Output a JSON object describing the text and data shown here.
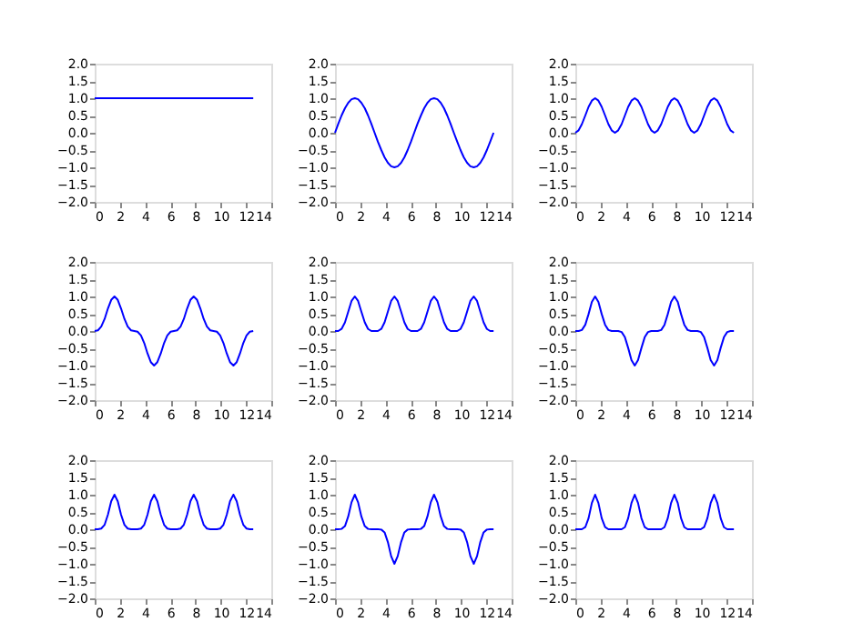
{
  "chart_data": [
    {
      "type": "line",
      "x": [
        0,
        0.26,
        0.52,
        0.79,
        1.05,
        1.31,
        1.57,
        1.83,
        2.09,
        2.36,
        2.62,
        2.88,
        3.14,
        3.4,
        3.67,
        3.93,
        4.19,
        4.45,
        4.71,
        4.97,
        5.24,
        5.5,
        5.76,
        6.02,
        6.28,
        6.54,
        6.81,
        7.07,
        7.33,
        7.59,
        7.85,
        8.12,
        8.38,
        8.64,
        8.9,
        9.16,
        9.42,
        9.69,
        9.95,
        10.21,
        10.47,
        10.73,
        11.0,
        11.26,
        11.52,
        11.78,
        12.04,
        12.3,
        12.57
      ],
      "series": [
        {
          "color": "#0000ff",
          "values": [
            1,
            1,
            1,
            1,
            1,
            1,
            1,
            1,
            1,
            1,
            1,
            1,
            1,
            1,
            1,
            1,
            1,
            1,
            1,
            1,
            1,
            1,
            1,
            1,
            1,
            1,
            1,
            1,
            1,
            1,
            1,
            1,
            1,
            1,
            1,
            1,
            1,
            1,
            1,
            1,
            1,
            1,
            1,
            1,
            1,
            1,
            1,
            1,
            1
          ]
        }
      ],
      "xlim": [
        0,
        14
      ],
      "xticks": [
        0,
        2,
        4,
        6,
        8,
        10,
        12,
        14
      ],
      "ylim": [
        -2,
        2
      ],
      "yticks": [
        {
          "value": -2,
          "label": "−2.0"
        },
        {
          "value": -1.5,
          "label": "−1.5"
        },
        {
          "value": -1,
          "label": "−1.0"
        },
        {
          "value": -0.5,
          "label": "−0.5"
        },
        {
          "value": 0,
          "label": "0.0"
        },
        {
          "value": 0.5,
          "label": "0.5"
        },
        {
          "value": 1,
          "label": "1.0"
        },
        {
          "value": 1.5,
          "label": "1.5"
        },
        {
          "value": 2,
          "label": "2.0"
        }
      ]
    },
    {
      "type": "line",
      "x": [
        0,
        0.26,
        0.52,
        0.79,
        1.05,
        1.31,
        1.57,
        1.83,
        2.09,
        2.36,
        2.62,
        2.88,
        3.14,
        3.4,
        3.67,
        3.93,
        4.19,
        4.45,
        4.71,
        4.97,
        5.24,
        5.5,
        5.76,
        6.02,
        6.28,
        6.54,
        6.81,
        7.07,
        7.33,
        7.59,
        7.85,
        8.12,
        8.38,
        8.64,
        8.9,
        9.16,
        9.42,
        9.69,
        9.95,
        10.21,
        10.47,
        10.73,
        11.0,
        11.26,
        11.52,
        11.78,
        12.04,
        12.3,
        12.57
      ],
      "series": [
        {
          "color": "#0000ff",
          "values": [
            0,
            0.26,
            0.5,
            0.71,
            0.87,
            0.97,
            1,
            0.97,
            0.87,
            0.71,
            0.5,
            0.26,
            0,
            -0.26,
            -0.5,
            -0.71,
            -0.87,
            -0.97,
            -1,
            -0.97,
            -0.87,
            -0.71,
            -0.5,
            -0.26,
            0,
            0.26,
            0.5,
            0.71,
            0.87,
            0.97,
            1,
            0.97,
            0.87,
            0.71,
            0.5,
            0.26,
            0,
            -0.26,
            -0.5,
            -0.71,
            -0.87,
            -0.97,
            -1,
            -0.97,
            -0.87,
            -0.71,
            -0.5,
            -0.26,
            0
          ]
        }
      ],
      "xlim": [
        0,
        14
      ],
      "xticks": [
        0,
        2,
        4,
        6,
        8,
        10,
        12,
        14
      ],
      "ylim": [
        -2,
        2
      ],
      "yticks": [
        {
          "value": -2,
          "label": "−2.0"
        },
        {
          "value": -1.5,
          "label": "−1.5"
        },
        {
          "value": -1,
          "label": "−1.0"
        },
        {
          "value": -0.5,
          "label": "−0.5"
        },
        {
          "value": 0,
          "label": "0.0"
        },
        {
          "value": 0.5,
          "label": "0.5"
        },
        {
          "value": 1,
          "label": "1.0"
        },
        {
          "value": 1.5,
          "label": "1.5"
        },
        {
          "value": 2,
          "label": "2.0"
        }
      ]
    },
    {
      "type": "line",
      "x": [
        0,
        0.26,
        0.52,
        0.79,
        1.05,
        1.31,
        1.57,
        1.83,
        2.09,
        2.36,
        2.62,
        2.88,
        3.14,
        3.4,
        3.67,
        3.93,
        4.19,
        4.45,
        4.71,
        4.97,
        5.24,
        5.5,
        5.76,
        6.02,
        6.28,
        6.54,
        6.81,
        7.07,
        7.33,
        7.59,
        7.85,
        8.12,
        8.38,
        8.64,
        8.9,
        9.16,
        9.42,
        9.69,
        9.95,
        10.21,
        10.47,
        10.73,
        11.0,
        11.26,
        11.52,
        11.78,
        12.04,
        12.3,
        12.57
      ],
      "series": [
        {
          "color": "#0000ff",
          "values": [
            0,
            0.07,
            0.25,
            0.5,
            0.75,
            0.93,
            1,
            0.93,
            0.75,
            0.5,
            0.25,
            0.07,
            0,
            0.07,
            0.25,
            0.5,
            0.75,
            0.93,
            1,
            0.93,
            0.75,
            0.5,
            0.25,
            0.07,
            0,
            0.07,
            0.25,
            0.5,
            0.75,
            0.93,
            1,
            0.93,
            0.75,
            0.5,
            0.25,
            0.07,
            0,
            0.07,
            0.25,
            0.5,
            0.75,
            0.93,
            1,
            0.93,
            0.75,
            0.5,
            0.25,
            0.07,
            0
          ]
        }
      ],
      "xlim": [
        0,
        14
      ],
      "xticks": [
        0,
        2,
        4,
        6,
        8,
        10,
        12,
        14
      ],
      "ylim": [
        -2,
        2
      ],
      "yticks": [
        {
          "value": -2,
          "label": "−2.0"
        },
        {
          "value": -1.5,
          "label": "−1.5"
        },
        {
          "value": -1,
          "label": "−1.0"
        },
        {
          "value": -0.5,
          "label": "−0.5"
        },
        {
          "value": 0,
          "label": "0.0"
        },
        {
          "value": 0.5,
          "label": "0.5"
        },
        {
          "value": 1,
          "label": "1.0"
        },
        {
          "value": 1.5,
          "label": "1.5"
        },
        {
          "value": 2,
          "label": "2.0"
        }
      ]
    },
    {
      "type": "line",
      "x": [
        0,
        0.26,
        0.52,
        0.79,
        1.05,
        1.31,
        1.57,
        1.83,
        2.09,
        2.36,
        2.62,
        2.88,
        3.14,
        3.4,
        3.67,
        3.93,
        4.19,
        4.45,
        4.71,
        4.97,
        5.24,
        5.5,
        5.76,
        6.02,
        6.28,
        6.54,
        6.81,
        7.07,
        7.33,
        7.59,
        7.85,
        8.12,
        8.38,
        8.64,
        8.9,
        9.16,
        9.42,
        9.69,
        9.95,
        10.21,
        10.47,
        10.73,
        11.0,
        11.26,
        11.52,
        11.78,
        12.04,
        12.3,
        12.57
      ],
      "series": [
        {
          "color": "#0000ff",
          "values": [
            0,
            0.02,
            0.13,
            0.35,
            0.65,
            0.9,
            1,
            0.9,
            0.65,
            0.35,
            0.13,
            0.02,
            0,
            -0.02,
            -0.13,
            -0.35,
            -0.65,
            -0.9,
            -1,
            -0.9,
            -0.65,
            -0.35,
            -0.13,
            -0.02,
            0,
            0.02,
            0.13,
            0.35,
            0.65,
            0.9,
            1,
            0.9,
            0.65,
            0.35,
            0.13,
            0.02,
            0,
            -0.02,
            -0.13,
            -0.35,
            -0.65,
            -0.9,
            -1,
            -0.9,
            -0.65,
            -0.35,
            -0.13,
            -0.02,
            0
          ]
        }
      ],
      "xlim": [
        0,
        14
      ],
      "xticks": [
        0,
        2,
        4,
        6,
        8,
        10,
        12,
        14
      ],
      "ylim": [
        -2,
        2
      ],
      "yticks": [
        {
          "value": -2,
          "label": "−2.0"
        },
        {
          "value": -1.5,
          "label": "−1.5"
        },
        {
          "value": -1,
          "label": "−1.0"
        },
        {
          "value": -0.5,
          "label": "−0.5"
        },
        {
          "value": 0,
          "label": "0.0"
        },
        {
          "value": 0.5,
          "label": "0.5"
        },
        {
          "value": 1,
          "label": "1.0"
        },
        {
          "value": 1.5,
          "label": "1.5"
        },
        {
          "value": 2,
          "label": "2.0"
        }
      ]
    },
    {
      "type": "line",
      "x": [
        0,
        0.26,
        0.52,
        0.79,
        1.05,
        1.31,
        1.57,
        1.83,
        2.09,
        2.36,
        2.62,
        2.88,
        3.14,
        3.4,
        3.67,
        3.93,
        4.19,
        4.45,
        4.71,
        4.97,
        5.24,
        5.5,
        5.76,
        6.02,
        6.28,
        6.54,
        6.81,
        7.07,
        7.33,
        7.59,
        7.85,
        8.12,
        8.38,
        8.64,
        8.9,
        9.16,
        9.42,
        9.69,
        9.95,
        10.21,
        10.47,
        10.73,
        11.0,
        11.26,
        11.52,
        11.78,
        12.04,
        12.3,
        12.57
      ],
      "series": [
        {
          "color": "#0000ff",
          "values": [
            0,
            0,
            0.06,
            0.25,
            0.56,
            0.87,
            1,
            0.87,
            0.56,
            0.25,
            0.06,
            0,
            0,
            0,
            0.06,
            0.25,
            0.56,
            0.87,
            1,
            0.87,
            0.56,
            0.25,
            0.06,
            0,
            0,
            0,
            0.06,
            0.25,
            0.56,
            0.87,
            1,
            0.87,
            0.56,
            0.25,
            0.06,
            0,
            0,
            0,
            0.06,
            0.25,
            0.56,
            0.87,
            1,
            0.87,
            0.56,
            0.25,
            0.06,
            0,
            0
          ]
        }
      ],
      "xlim": [
        0,
        14
      ],
      "xticks": [
        0,
        2,
        4,
        6,
        8,
        10,
        12,
        14
      ],
      "ylim": [
        -2,
        2
      ],
      "yticks": [
        {
          "value": -2,
          "label": "−2.0"
        },
        {
          "value": -1.5,
          "label": "−1.5"
        },
        {
          "value": -1,
          "label": "−1.0"
        },
        {
          "value": -0.5,
          "label": "−0.5"
        },
        {
          "value": 0,
          "label": "0.0"
        },
        {
          "value": 0.5,
          "label": "0.5"
        },
        {
          "value": 1,
          "label": "1.0"
        },
        {
          "value": 1.5,
          "label": "1.5"
        },
        {
          "value": 2,
          "label": "2.0"
        }
      ]
    },
    {
      "type": "line",
      "x": [
        0,
        0.26,
        0.52,
        0.79,
        1.05,
        1.31,
        1.57,
        1.83,
        2.09,
        2.36,
        2.62,
        2.88,
        3.14,
        3.4,
        3.67,
        3.93,
        4.19,
        4.45,
        4.71,
        4.97,
        5.24,
        5.5,
        5.76,
        6.02,
        6.28,
        6.54,
        6.81,
        7.07,
        7.33,
        7.59,
        7.85,
        8.12,
        8.38,
        8.64,
        8.9,
        9.16,
        9.42,
        9.69,
        9.95,
        10.21,
        10.47,
        10.73,
        11.0,
        11.26,
        11.52,
        11.78,
        12.04,
        12.3,
        12.57
      ],
      "series": [
        {
          "color": "#0000ff",
          "values": [
            0,
            0,
            0.03,
            0.18,
            0.49,
            0.84,
            1,
            0.84,
            0.49,
            0.18,
            0.03,
            0,
            0,
            0,
            -0.03,
            -0.18,
            -0.49,
            -0.84,
            -1,
            -0.84,
            -0.49,
            -0.18,
            -0.03,
            0,
            0,
            0,
            0.03,
            0.18,
            0.49,
            0.84,
            1,
            0.84,
            0.49,
            0.18,
            0.03,
            0,
            0,
            0,
            -0.03,
            -0.18,
            -0.49,
            -0.84,
            -1,
            -0.84,
            -0.49,
            -0.18,
            -0.03,
            0,
            0
          ]
        }
      ],
      "xlim": [
        0,
        14
      ],
      "xticks": [
        0,
        2,
        4,
        6,
        8,
        10,
        12,
        14
      ],
      "ylim": [
        -2,
        2
      ],
      "yticks": [
        {
          "value": -2,
          "label": "−2.0"
        },
        {
          "value": -1.5,
          "label": "−1.5"
        },
        {
          "value": -1,
          "label": "−1.0"
        },
        {
          "value": -0.5,
          "label": "−0.5"
        },
        {
          "value": 0,
          "label": "0.0"
        },
        {
          "value": 0.5,
          "label": "0.5"
        },
        {
          "value": 1,
          "label": "1.0"
        },
        {
          "value": 1.5,
          "label": "1.5"
        },
        {
          "value": 2,
          "label": "2.0"
        }
      ]
    },
    {
      "type": "line",
      "x": [
        0,
        0.26,
        0.52,
        0.79,
        1.05,
        1.31,
        1.57,
        1.83,
        2.09,
        2.36,
        2.62,
        2.88,
        3.14,
        3.4,
        3.67,
        3.93,
        4.19,
        4.45,
        4.71,
        4.97,
        5.24,
        5.5,
        5.76,
        6.02,
        6.28,
        6.54,
        6.81,
        7.07,
        7.33,
        7.59,
        7.85,
        8.12,
        8.38,
        8.64,
        8.9,
        9.16,
        9.42,
        9.69,
        9.95,
        10.21,
        10.47,
        10.73,
        11.0,
        11.26,
        11.52,
        11.78,
        12.04,
        12.3,
        12.57
      ],
      "series": [
        {
          "color": "#0000ff",
          "values": [
            0,
            0,
            0.02,
            0.13,
            0.42,
            0.81,
            1,
            0.81,
            0.42,
            0.13,
            0.02,
            0,
            0,
            0,
            0.02,
            0.13,
            0.42,
            0.81,
            1,
            0.81,
            0.42,
            0.13,
            0.02,
            0,
            0,
            0,
            0.02,
            0.13,
            0.42,
            0.81,
            1,
            0.81,
            0.42,
            0.13,
            0.02,
            0,
            0,
            0,
            0.02,
            0.13,
            0.42,
            0.81,
            1,
            0.81,
            0.42,
            0.13,
            0.02,
            0,
            0
          ]
        }
      ],
      "xlim": [
        0,
        14
      ],
      "xticks": [
        0,
        2,
        4,
        6,
        8,
        10,
        12,
        14
      ],
      "ylim": [
        -2,
        2
      ],
      "yticks": [
        {
          "value": -2,
          "label": "−2.0"
        },
        {
          "value": -1.5,
          "label": "−1.5"
        },
        {
          "value": -1,
          "label": "−1.0"
        },
        {
          "value": -0.5,
          "label": "−0.5"
        },
        {
          "value": 0,
          "label": "0.0"
        },
        {
          "value": 0.5,
          "label": "0.5"
        },
        {
          "value": 1,
          "label": "1.0"
        },
        {
          "value": 1.5,
          "label": "1.5"
        },
        {
          "value": 2,
          "label": "2.0"
        }
      ]
    },
    {
      "type": "line",
      "x": [
        0,
        0.26,
        0.52,
        0.79,
        1.05,
        1.31,
        1.57,
        1.83,
        2.09,
        2.36,
        2.62,
        2.88,
        3.14,
        3.4,
        3.67,
        3.93,
        4.19,
        4.45,
        4.71,
        4.97,
        5.24,
        5.5,
        5.76,
        6.02,
        6.28,
        6.54,
        6.81,
        7.07,
        7.33,
        7.59,
        7.85,
        8.12,
        8.38,
        8.64,
        8.9,
        9.16,
        9.42,
        9.69,
        9.95,
        10.21,
        10.47,
        10.73,
        11.0,
        11.26,
        11.52,
        11.78,
        12.04,
        12.3,
        12.57
      ],
      "series": [
        {
          "color": "#0000ff",
          "values": [
            0,
            0,
            0.01,
            0.09,
            0.37,
            0.78,
            1,
            0.78,
            0.37,
            0.09,
            0.01,
            0,
            0,
            0,
            -0.01,
            -0.09,
            -0.37,
            -0.78,
            -1,
            -0.78,
            -0.37,
            -0.09,
            -0.01,
            0,
            0,
            0,
            0.01,
            0.09,
            0.37,
            0.78,
            1,
            0.78,
            0.37,
            0.09,
            0.01,
            0,
            0,
            0,
            -0.01,
            -0.09,
            -0.37,
            -0.78,
            -1,
            -0.78,
            -0.37,
            -0.09,
            -0.01,
            0,
            0
          ]
        }
      ],
      "xlim": [
        0,
        14
      ],
      "xticks": [
        0,
        2,
        4,
        6,
        8,
        10,
        12,
        14
      ],
      "ylim": [
        -2,
        2
      ],
      "yticks": [
        {
          "value": -2,
          "label": "−2.0"
        },
        {
          "value": -1.5,
          "label": "−1.5"
        },
        {
          "value": -1,
          "label": "−1.0"
        },
        {
          "value": -0.5,
          "label": "−0.5"
        },
        {
          "value": 0,
          "label": "0.0"
        },
        {
          "value": 0.5,
          "label": "0.5"
        },
        {
          "value": 1,
          "label": "1.0"
        },
        {
          "value": 1.5,
          "label": "1.5"
        },
        {
          "value": 2,
          "label": "2.0"
        }
      ]
    },
    {
      "type": "line",
      "x": [
        0,
        0.26,
        0.52,
        0.79,
        1.05,
        1.31,
        1.57,
        1.83,
        2.09,
        2.36,
        2.62,
        2.88,
        3.14,
        3.4,
        3.67,
        3.93,
        4.19,
        4.45,
        4.71,
        4.97,
        5.24,
        5.5,
        5.76,
        6.02,
        6.28,
        6.54,
        6.81,
        7.07,
        7.33,
        7.59,
        7.85,
        8.12,
        8.38,
        8.64,
        8.9,
        9.16,
        9.42,
        9.69,
        9.95,
        10.21,
        10.47,
        10.73,
        11.0,
        11.26,
        11.52,
        11.78,
        12.04,
        12.3,
        12.57
      ],
      "series": [
        {
          "color": "#0000ff",
          "values": [
            0,
            0,
            0,
            0.06,
            0.32,
            0.76,
            1,
            0.76,
            0.32,
            0.06,
            0,
            0,
            0,
            0,
            0,
            0.06,
            0.32,
            0.76,
            1,
            0.76,
            0.32,
            0.06,
            0,
            0,
            0,
            0,
            0,
            0.06,
            0.32,
            0.76,
            1,
            0.76,
            0.32,
            0.06,
            0,
            0,
            0,
            0,
            0,
            0.06,
            0.32,
            0.76,
            1,
            0.76,
            0.32,
            0.06,
            0,
            0,
            0
          ]
        }
      ],
      "xlim": [
        0,
        14
      ],
      "xticks": [
        0,
        2,
        4,
        6,
        8,
        10,
        12,
        14
      ],
      "ylim": [
        -2,
        2
      ],
      "yticks": [
        {
          "value": -2,
          "label": "−2.0"
        },
        {
          "value": -1.5,
          "label": "−1.5"
        },
        {
          "value": -1,
          "label": "−1.0"
        },
        {
          "value": -0.5,
          "label": "−0.5"
        },
        {
          "value": 0,
          "label": "0.0"
        },
        {
          "value": 0.5,
          "label": "0.5"
        },
        {
          "value": 1,
          "label": "1.0"
        },
        {
          "value": 1.5,
          "label": "1.5"
        },
        {
          "value": 2,
          "label": "2.0"
        }
      ]
    }
  ]
}
